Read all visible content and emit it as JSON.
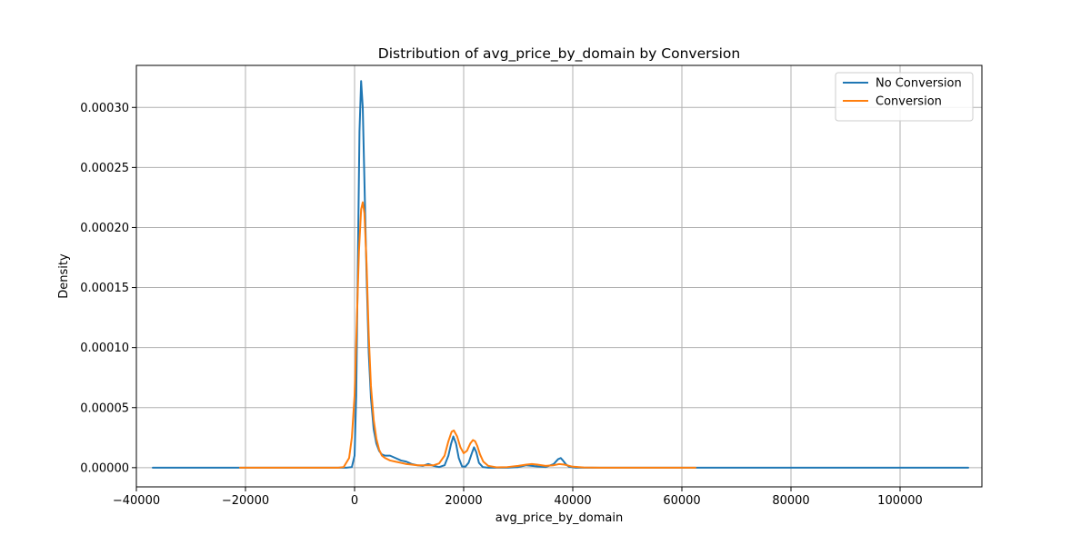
{
  "chart_data": {
    "type": "line",
    "title": "Distribution of avg_price_by_domain by Conversion",
    "xlabel": "avg_price_by_domain",
    "ylabel": "Density",
    "xlim": [
      -40000,
      115000
    ],
    "ylim": [
      -1.6e-05,
      0.000335
    ],
    "xticks": [
      -40000,
      -20000,
      0,
      20000,
      40000,
      60000,
      80000,
      100000
    ],
    "xtick_labels": [
      "−40000",
      "−20000",
      "0",
      "20000",
      "40000",
      "60000",
      "80000",
      "100000"
    ],
    "yticks": [
      0,
      5e-05,
      0.0001,
      0.00015,
      0.0002,
      0.00025,
      0.0003
    ],
    "ytick_labels": [
      "0.00000",
      "0.00005",
      "0.00010",
      "0.00015",
      "0.00020",
      "0.00025",
      "0.00030"
    ],
    "grid": true,
    "legend_position": "top-right",
    "series": [
      {
        "name": "No Conversion",
        "color": "#1f77b4",
        "x": [
          -37000,
          -1500,
          -500,
          0,
          300,
          600,
          900,
          1200,
          1500,
          1800,
          2200,
          2600,
          3000,
          3500,
          4000,
          4500,
          5000,
          5600,
          6500,
          7500,
          8500,
          9500,
          10500,
          11500,
          12500,
          13500,
          14500,
          15500,
          16500,
          17200,
          17700,
          18100,
          18600,
          19100,
          19700,
          20300,
          20900,
          21500,
          21900,
          22300,
          22800,
          23500,
          24500,
          26000,
          28000,
          30000,
          31500,
          32500,
          33500,
          35000,
          36500,
          37300,
          37800,
          38200,
          38700,
          39300,
          40500,
          42000,
          45000,
          50000,
          60000,
          70000,
          80000,
          90000,
          100000,
          112500
        ],
        "y": [
          0,
          0,
          5e-07,
          1e-05,
          6e-05,
          0.00017,
          0.00028,
          0.000322,
          0.0003,
          0.00024,
          0.00016,
          9.5e-05,
          5.8e-05,
          3.2e-05,
          2e-05,
          1.4e-05,
          1.1e-05,
          1e-05,
          1e-05,
          8e-06,
          6e-06,
          5e-06,
          3e-06,
          2e-06,
          1.5e-06,
          3e-06,
          1.5e-06,
          5e-07,
          2e-06,
          1e-05,
          2e-05,
          2.6e-05,
          2e-05,
          8e-06,
          1e-06,
          8e-07,
          4e-06,
          1.2e-05,
          1.7e-05,
          1.3e-05,
          4e-06,
          5e-07,
          0,
          0,
          0,
          5e-07,
          2e-06,
          1.5e-06,
          1e-06,
          5e-07,
          3e-06,
          7e-06,
          8e-06,
          6e-06,
          3e-06,
          8e-07,
          0,
          0,
          0,
          0,
          0,
          0,
          0,
          0,
          0,
          0
        ]
      },
      {
        "name": "Conversion",
        "color": "#ff7f0e",
        "x": [
          -21000,
          -3000,
          -2000,
          -1000,
          -500,
          0,
          400,
          800,
          1200,
          1500,
          1800,
          2200,
          2600,
          3000,
          3500,
          4000,
          4500,
          5000,
          5600,
          6500,
          7500,
          8500,
          9500,
          10500,
          11500,
          12500,
          13500,
          14500,
          15500,
          16500,
          17200,
          17800,
          18200,
          18800,
          19400,
          20000,
          20600,
          21200,
          21700,
          22100,
          22500,
          23000,
          23600,
          24500,
          26000,
          28000,
          30000,
          31500,
          32500,
          33500,
          35000,
          36500,
          37500,
          38500,
          40000,
          42000,
          45000,
          50000,
          55000,
          62500
        ],
        "y": [
          0,
          0,
          5e-07,
          8e-06,
          2.5e-05,
          6e-05,
          0.00012,
          0.00018,
          0.000215,
          0.000221,
          0.000212,
          0.00017,
          0.00011,
          6.8e-05,
          4e-05,
          2.4e-05,
          1.5e-05,
          1e-05,
          8e-06,
          6e-06,
          5e-06,
          4e-06,
          3e-06,
          2.5e-06,
          2e-06,
          2e-06,
          2e-06,
          2e-06,
          3.5e-06,
          1e-05,
          2.2e-05,
          3e-05,
          3.1e-05,
          2.6e-05,
          1.7e-05,
          1.2e-05,
          1.4e-05,
          2e-05,
          2.3e-05,
          2.2e-05,
          1.8e-05,
          1.1e-05,
          5e-06,
          1.5e-06,
          3e-07,
          5e-07,
          1.5e-06,
          2.5e-06,
          3e-06,
          2.5e-06,
          1.5e-06,
          2e-06,
          3e-06,
          2.5e-06,
          8e-07,
          2e-07,
          0,
          0,
          0,
          0
        ]
      }
    ]
  }
}
